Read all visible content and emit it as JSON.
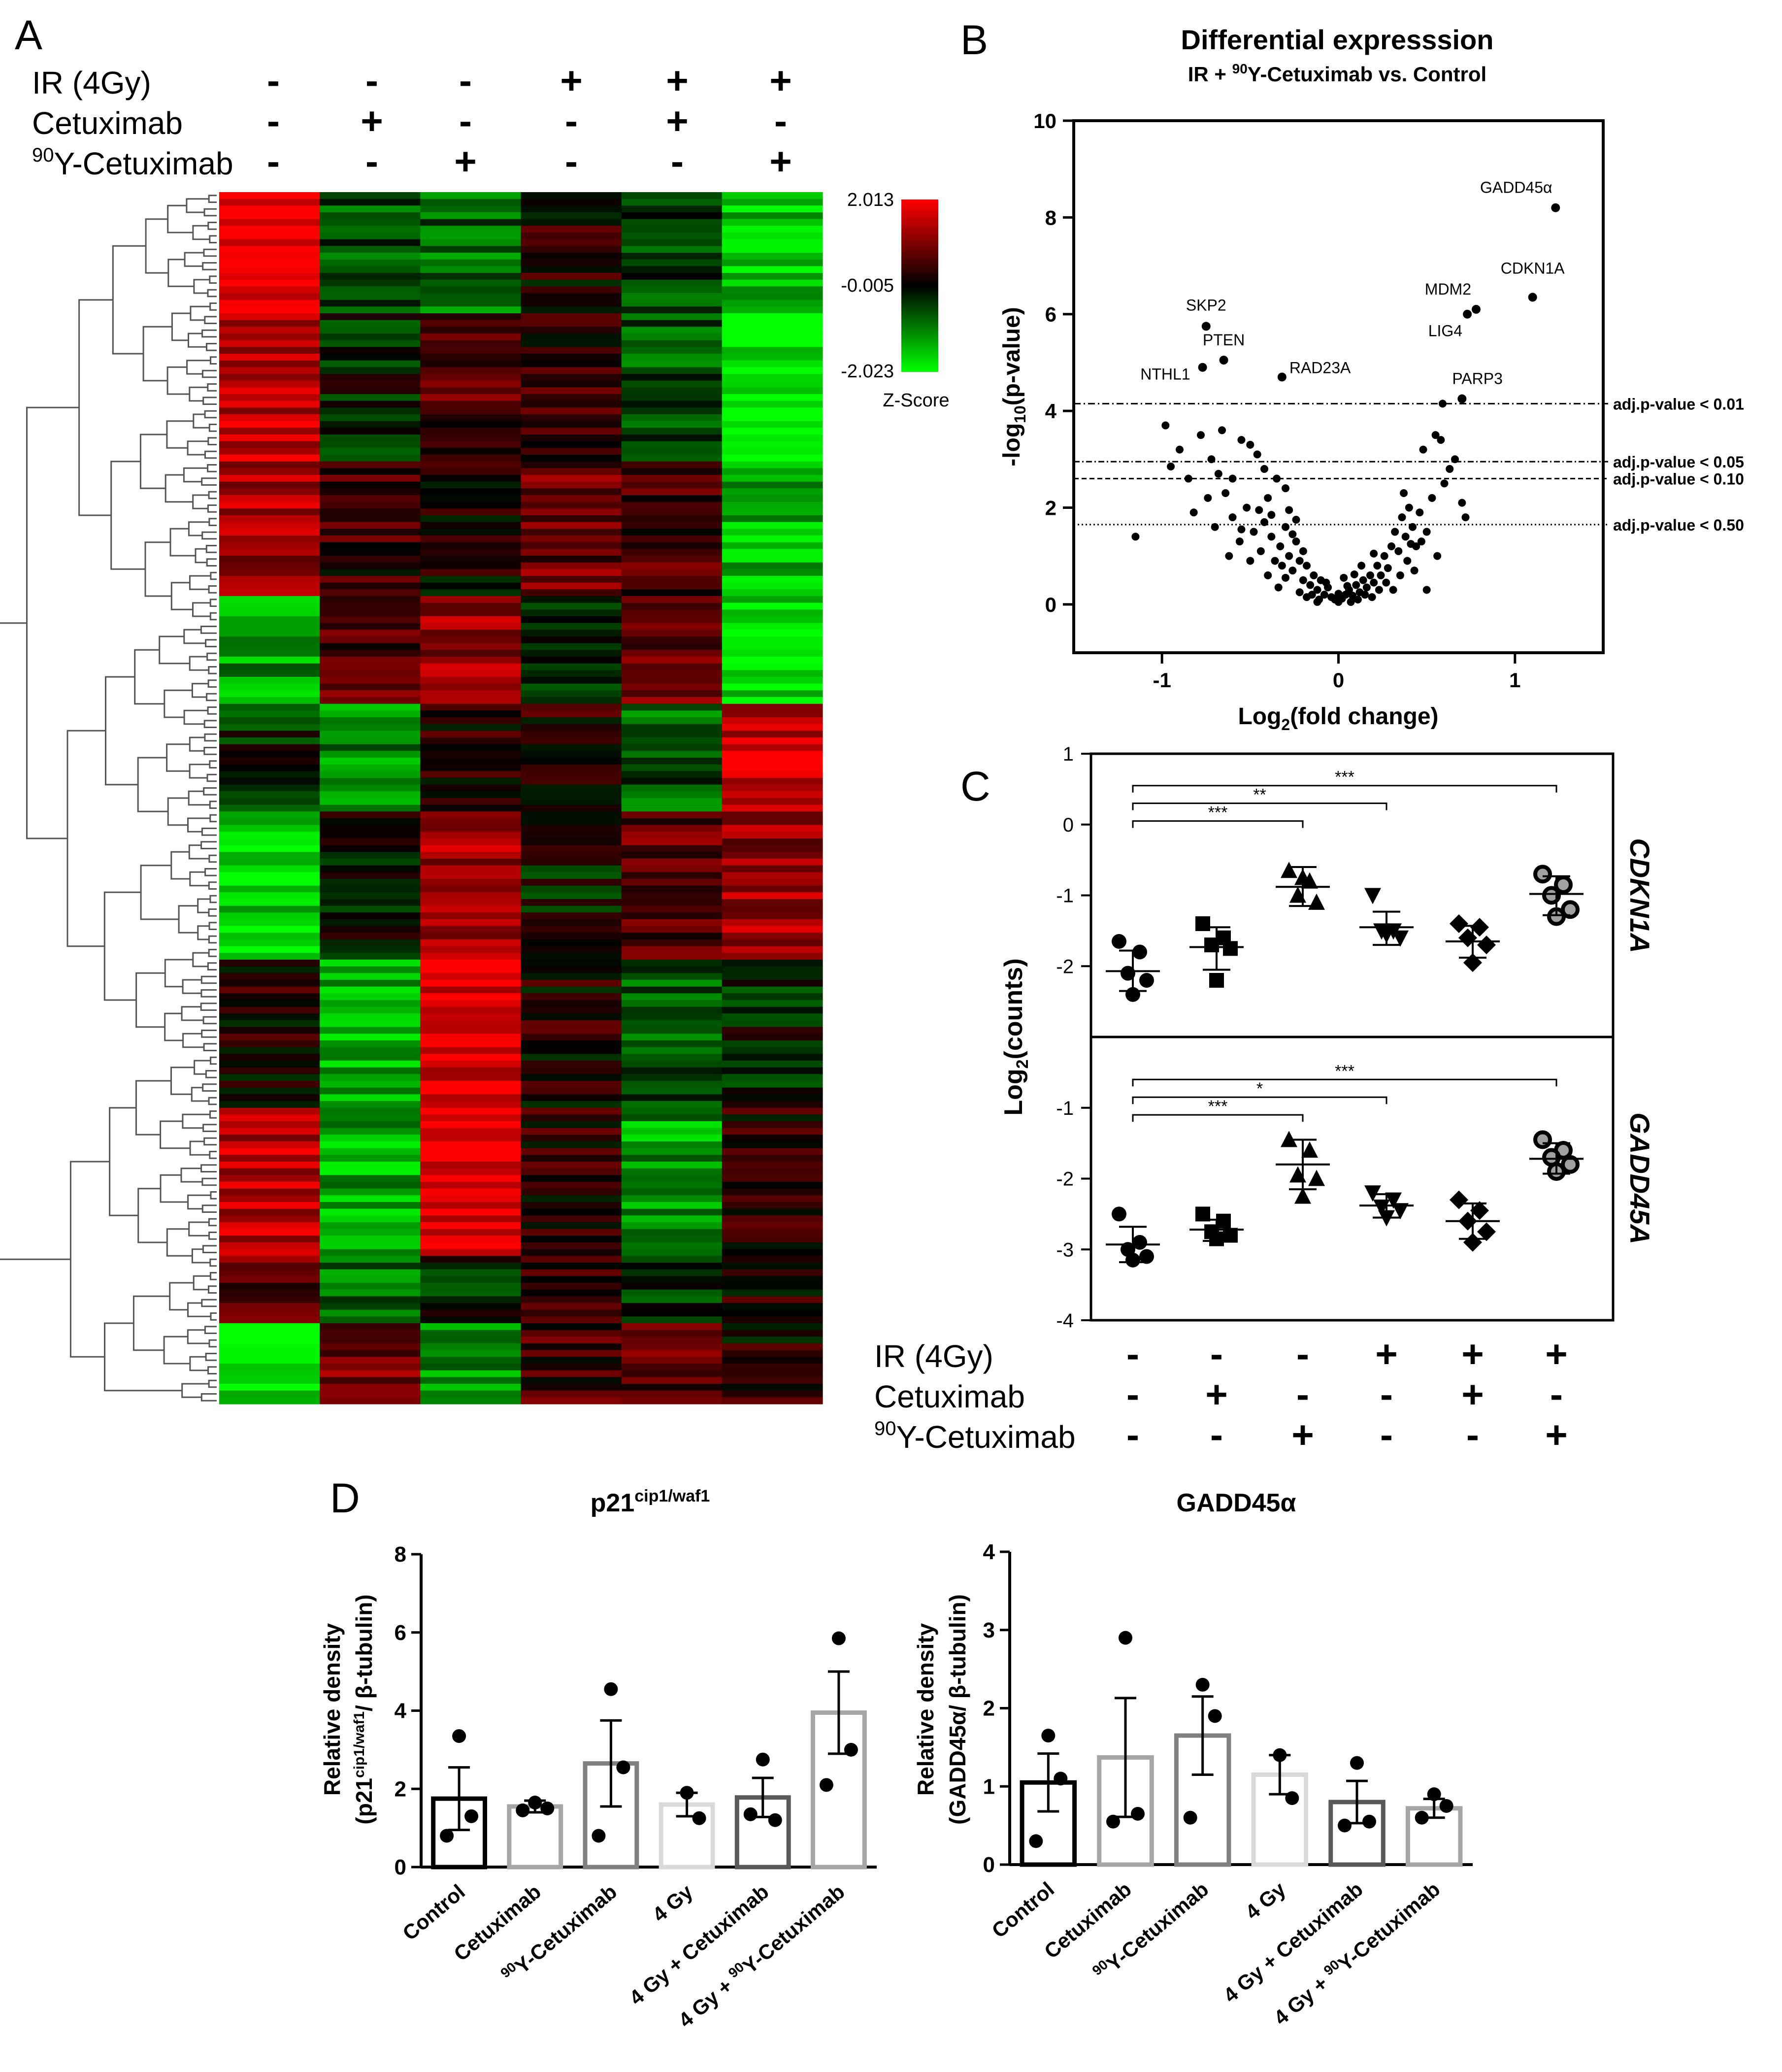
{
  "panel_labels": {
    "A": "A",
    "B": "B",
    "C": "C",
    "D": "D"
  },
  "conditions": {
    "rows": [
      {
        "label": "IR (4Gy)",
        "signs": [
          "-",
          "-",
          "-",
          "+",
          "+",
          "+"
        ]
      },
      {
        "label": "Cetuximab",
        "signs": [
          "-",
          "+",
          "-",
          "-",
          "+",
          "-"
        ]
      },
      {
        "label": "Y-Cetuximab",
        "sup": "90",
        "signs": [
          "-",
          "-",
          "+",
          "-",
          "-",
          "+"
        ]
      }
    ]
  },
  "colors": {
    "high": "#ff0000",
    "mid": "#000000",
    "low": "#00ff00",
    "black": "#000000"
  },
  "chart_data": [
    {
      "id": "heatmap",
      "type": "heatmap",
      "columns": 6,
      "rows_approx": 180,
      "colorbar": {
        "max_label": "2.013",
        "mid_label": "-0.005",
        "min_label": "-2.023",
        "title": "Z-Score",
        "range": [
          -2.023,
          2.013
        ]
      },
      "column_blocks": [
        [
          2.0,
          -0.6,
          -0.8,
          0.2,
          -0.5,
          -1.6
        ],
        [
          1.5,
          -0.2,
          0.6,
          0.3,
          -0.6,
          -1.9
        ],
        [
          1.3,
          0.4,
          0.2,
          0.8,
          0.5,
          -1.4
        ],
        [
          -1.2,
          0.6,
          1.2,
          -0.2,
          0.9,
          -1.8
        ],
        [
          -0.3,
          -1.0,
          0.3,
          0.2,
          -0.7,
          1.6
        ],
        [
          -1.7,
          -0.1,
          1.2,
          -0.1,
          0.7,
          1.2
        ],
        [
          0.2,
          -1.4,
          1.7,
          0.2,
          -0.6,
          -0.2
        ],
        [
          1.4,
          -1.3,
          1.9,
          0.3,
          -1.2,
          0.3
        ],
        [
          0.8,
          -0.8,
          -0.3,
          0.4,
          -0.5,
          0.2
        ],
        [
          -1.9,
          0.9,
          -1.1,
          0.5,
          0.6,
          0.2
        ]
      ],
      "block_row_counts": [
        18,
        22,
        20,
        16,
        16,
        22,
        22,
        22,
        10,
        12
      ]
    },
    {
      "id": "volcano",
      "type": "scatter",
      "title": "Differential expresssion",
      "subtitle_pre": "IR + ",
      "subtitle_sup": "90",
      "subtitle_post": "Y-Cetuximab vs. Control",
      "ylabel_pre": "-log",
      "ylabel_sub": "10",
      "ylabel_post": "(p-value)",
      "xlabel_pre": "Log",
      "xlabel_sub": "2",
      "xlabel_post": "(fold change)",
      "xlim": [
        -1.5,
        1.5
      ],
      "ylim": [
        -1,
        10
      ],
      "xticks": [
        "-1",
        "0",
        "1"
      ],
      "yticks": [
        "0",
        "2",
        "4",
        "6",
        "8",
        "10"
      ],
      "thresholds": [
        {
          "label": "adj.p-value < 0.01",
          "y": 4.15
        },
        {
          "label": "adj.p-value < 0.05",
          "y": 2.95
        },
        {
          "label": "adj.p-value < 0.10",
          "y": 2.6
        },
        {
          "label": "adj.p-value < 0.50",
          "y": 1.65
        }
      ],
      "labeled_points": [
        {
          "label": "GADD45α",
          "x": 1.23,
          "y": 8.2
        },
        {
          "label": "CDKN1A",
          "x": 1.1,
          "y": 6.35
        },
        {
          "label": "MDM2",
          "x": 0.78,
          "y": 6.1
        },
        {
          "label": "LIG4",
          "x": 0.73,
          "y": 6.0
        },
        {
          "label": "PARP3",
          "x": 0.7,
          "y": 4.25
        },
        {
          "label": "SKP2",
          "x": -0.75,
          "y": 5.75
        },
        {
          "label": "PTEN",
          "x": -0.65,
          "y": 5.05
        },
        {
          "label": "NTHL1",
          "x": -0.77,
          "y": 4.9
        },
        {
          "label": "RAD23A",
          "x": -0.32,
          "y": 4.7
        }
      ],
      "points": [
        [
          0.59,
          4.15
        ],
        [
          -1.15,
          1.4
        ],
        [
          -0.95,
          2.85
        ],
        [
          -0.98,
          3.7
        ],
        [
          -0.9,
          3.2
        ],
        [
          -0.78,
          3.5
        ],
        [
          -0.72,
          3.0
        ],
        [
          -0.66,
          3.6
        ],
        [
          -0.6,
          2.6
        ],
        [
          -0.55,
          3.4
        ],
        [
          -0.5,
          3.3
        ],
        [
          -0.46,
          3.1
        ],
        [
          -0.42,
          2.8
        ],
        [
          -0.4,
          2.2
        ],
        [
          -0.35,
          2.6
        ],
        [
          -0.3,
          2.4
        ],
        [
          -0.85,
          2.6
        ],
        [
          -0.82,
          1.9
        ],
        [
          -0.74,
          2.2
        ],
        [
          -0.7,
          1.6
        ],
        [
          -0.64,
          2.3
        ],
        [
          -0.6,
          1.8
        ],
        [
          -0.56,
          1.3
        ],
        [
          -0.52,
          2.0
        ],
        [
          -0.48,
          1.5
        ],
        [
          -0.44,
          1.1
        ],
        [
          -0.42,
          1.7
        ],
        [
          -0.38,
          1.4
        ],
        [
          -0.36,
          0.9
        ],
        [
          -0.33,
          1.2
        ],
        [
          -0.3,
          1.6
        ],
        [
          -0.28,
          1.0
        ],
        [
          -0.26,
          0.7
        ],
        [
          -0.24,
          1.3
        ],
        [
          -0.22,
          0.9
        ],
        [
          -0.2,
          0.5
        ],
        [
          -0.18,
          0.8
        ],
        [
          -0.16,
          0.4
        ],
        [
          -0.14,
          0.6
        ],
        [
          -0.12,
          0.3
        ],
        [
          -0.1,
          0.5
        ],
        [
          -0.08,
          0.2
        ],
        [
          -0.06,
          0.35
        ],
        [
          -0.04,
          0.15
        ],
        [
          -0.02,
          0.1
        ],
        [
          0.0,
          0.05
        ],
        [
          0.02,
          0.12
        ],
        [
          0.04,
          0.2
        ],
        [
          0.06,
          0.3
        ],
        [
          0.08,
          0.18
        ],
        [
          0.1,
          0.4
        ],
        [
          0.12,
          0.25
        ],
        [
          0.14,
          0.5
        ],
        [
          0.16,
          0.35
        ],
        [
          0.18,
          0.6
        ],
        [
          0.2,
          0.45
        ],
        [
          0.22,
          0.8
        ],
        [
          0.24,
          0.6
        ],
        [
          0.26,
          1.0
        ],
        [
          0.28,
          0.75
        ],
        [
          0.3,
          1.2
        ],
        [
          0.32,
          1.5
        ],
        [
          0.34,
          1.1
        ],
        [
          0.36,
          1.8
        ],
        [
          0.38,
          1.4
        ],
        [
          0.4,
          2.0
        ],
        [
          0.42,
          1.6
        ],
        [
          0.44,
          1.2
        ],
        [
          0.46,
          1.9
        ],
        [
          0.5,
          1.5
        ],
        [
          0.53,
          2.2
        ],
        [
          0.56,
          1.0
        ],
        [
          0.6,
          2.5
        ],
        [
          0.63,
          2.8
        ],
        [
          0.55,
          3.5
        ],
        [
          0.66,
          3.0
        ],
        [
          0.7,
          2.1
        ],
        [
          0.72,
          1.8
        ],
        [
          0.48,
          3.2
        ],
        [
          0.58,
          3.4
        ],
        [
          0.5,
          0.3
        ],
        [
          -0.5,
          0.9
        ],
        [
          -0.62,
          1.0
        ],
        [
          -0.68,
          2.7
        ],
        [
          -0.4,
          0.6
        ],
        [
          -0.34,
          0.35
        ],
        [
          -0.3,
          0.55
        ],
        [
          -0.26,
          1.45
        ],
        [
          -0.2,
          1.1
        ],
        [
          -0.15,
          0.2
        ],
        [
          -0.11,
          0.1
        ],
        [
          -0.07,
          0.45
        ],
        [
          0.03,
          0.55
        ],
        [
          0.07,
          0.05
        ],
        [
          0.11,
          0.1
        ],
        [
          0.15,
          0.2
        ],
        [
          0.19,
          0.15
        ],
        [
          0.23,
          0.3
        ],
        [
          0.27,
          0.45
        ],
        [
          0.31,
          0.3
        ],
        [
          0.35,
          0.6
        ],
        [
          0.39,
          0.9
        ],
        [
          0.43,
          0.7
        ],
        [
          0.47,
          1.3
        ],
        [
          0.37,
          2.3
        ],
        [
          0.41,
          1.25
        ],
        [
          -0.45,
          1.95
        ],
        [
          -0.55,
          1.55
        ],
        [
          -0.38,
          1.85
        ],
        [
          -0.24,
          1.75
        ],
        [
          -0.28,
          1.95
        ],
        [
          -0.32,
          0.8
        ],
        [
          -0.22,
          0.25
        ],
        [
          -0.18,
          0.15
        ],
        [
          -0.12,
          0.05
        ],
        [
          0.0,
          0.22
        ],
        [
          0.05,
          0.38
        ],
        [
          0.09,
          0.62
        ],
        [
          0.13,
          0.8
        ],
        [
          0.2,
          1.05
        ]
      ]
    },
    {
      "id": "cdkn1a",
      "type": "scatter",
      "gene_label": "CDKN1A",
      "ylim": [
        -3,
        1
      ],
      "yticks": [
        "-2",
        "-1",
        "0",
        "1"
      ],
      "groups": [
        {
          "mean": -2.07,
          "sd_low": -2.35,
          "sd_high": -1.78,
          "points": [
            -1.65,
            -1.8,
            -2.1,
            -2.2,
            -2.4
          ],
          "marker": "circle"
        },
        {
          "mean": -1.73,
          "sd_low": -2.05,
          "sd_high": -1.45,
          "points": [
            -1.4,
            -1.6,
            -1.7,
            -1.75,
            -2.2
          ],
          "marker": "square"
        },
        {
          "mean": -0.88,
          "sd_low": -1.15,
          "sd_high": -0.6,
          "points": [
            -0.65,
            -0.8,
            -1.0,
            -1.1,
            -0.75
          ],
          "marker": "triangle-up"
        },
        {
          "mean": -1.45,
          "sd_low": -1.7,
          "sd_high": -1.23,
          "points": [
            -1.0,
            -1.5,
            -1.5,
            -1.6,
            -1.55
          ],
          "marker": "triangle-down"
        },
        {
          "mean": -1.65,
          "sd_low": -1.88,
          "sd_high": -1.43,
          "points": [
            -1.4,
            -1.45,
            -1.6,
            -1.7,
            -1.95
          ],
          "marker": "diamond"
        },
        {
          "mean": -0.98,
          "sd_low": -1.28,
          "sd_high": -0.73,
          "points": [
            -0.7,
            -0.85,
            -1.0,
            -1.2,
            -1.3
          ],
          "marker": "circle-gray"
        }
      ],
      "brackets": [
        {
          "from": 0,
          "to": 5,
          "label": "***",
          "y": 0.55
        },
        {
          "from": 0,
          "to": 3,
          "label": "**",
          "y": 0.3
        },
        {
          "from": 0,
          "to": 2,
          "label": "***",
          "y": 0.05
        }
      ]
    },
    {
      "id": "gadd45a",
      "type": "scatter",
      "gene_label": "GADD45A",
      "ylim": [
        -4,
        0
      ],
      "yticks": [
        "-4",
        "-3",
        "-2",
        "-1"
      ],
      "groups": [
        {
          "mean": -2.93,
          "sd_low": -3.18,
          "sd_high": -2.68,
          "points": [
            -2.5,
            -2.9,
            -3.0,
            -3.1,
            -3.15
          ],
          "marker": "circle"
        },
        {
          "mean": -2.72,
          "sd_low": -2.88,
          "sd_high": -2.58,
          "points": [
            -2.5,
            -2.6,
            -2.75,
            -2.8,
            -2.85
          ],
          "marker": "square"
        },
        {
          "mean": -1.8,
          "sd_low": -2.15,
          "sd_high": -1.45,
          "points": [
            -1.45,
            -1.6,
            -1.95,
            -2.0,
            -2.25
          ],
          "marker": "triangle-up"
        },
        {
          "mean": -2.38,
          "sd_low": -2.55,
          "sd_high": -2.22,
          "points": [
            -2.2,
            -2.3,
            -2.4,
            -2.45,
            -2.55
          ],
          "marker": "triangle-down"
        },
        {
          "mean": -2.6,
          "sd_low": -2.85,
          "sd_high": -2.35,
          "points": [
            -2.3,
            -2.45,
            -2.6,
            -2.75,
            -2.9
          ],
          "marker": "diamond"
        },
        {
          "mean": -1.72,
          "sd_low": -1.93,
          "sd_high": -1.5,
          "points": [
            -1.45,
            -1.6,
            -1.7,
            -1.8,
            -1.9
          ],
          "marker": "circle-gray"
        }
      ],
      "brackets": [
        {
          "from": 0,
          "to": 5,
          "label": "***",
          "y": -0.6
        },
        {
          "from": 0,
          "to": 3,
          "label": "*",
          "y": -0.85
        },
        {
          "from": 0,
          "to": 2,
          "label": "***",
          "y": -1.1
        }
      ]
    },
    {
      "id": "p21_bar",
      "type": "bar",
      "title_pre": "p21",
      "title_sup": "cip1/waf1",
      "ylabel_line1": "Relative density",
      "ylabel_pre": "(p21",
      "ylabel_sup": "cip1/waf1",
      "ylabel_post": "/ β-tubulin)",
      "ylim": [
        0,
        8
      ],
      "yticks": [
        "0",
        "2",
        "4",
        "6",
        "8"
      ],
      "bars": [
        {
          "category": "Control",
          "value": 1.75,
          "sem": 0.8,
          "points": [
            3.35,
            1.3,
            0.8
          ],
          "color": "#000000"
        },
        {
          "category": "Cetuximab",
          "value": 1.55,
          "sem": 0.15,
          "points": [
            1.65,
            1.5,
            1.45
          ],
          "color": "#a6a6a6"
        },
        {
          "category": "Y-Cetuximab",
          "sup": "90",
          "value": 2.65,
          "sem": 1.1,
          "points": [
            4.55,
            2.55,
            0.8
          ],
          "color": "#808080"
        },
        {
          "category": "4 Gy",
          "value": 1.6,
          "sem": 0.3,
          "points": [
            1.9,
            1.25
          ],
          "color": "#d9d9d9"
        },
        {
          "category": "4 Gy + Cetuximab",
          "value": 1.78,
          "sem": 0.5,
          "points": [
            2.75,
            1.2,
            1.35
          ],
          "color": "#595959"
        },
        {
          "category": "4 Gy + Y-Cetuximab",
          "sup": "90",
          "value": 3.95,
          "sem": 1.05,
          "points": [
            5.85,
            3.0,
            2.1
          ],
          "color": "#a6a6a6"
        }
      ]
    },
    {
      "id": "gadd45_bar",
      "type": "bar",
      "title": "GADD45α",
      "ylabel_line1": "Relative density",
      "ylabel_line2": "(GADD45α/ β-tubulin)",
      "ylim": [
        0,
        4
      ],
      "yticks": [
        "0",
        "1",
        "2",
        "3",
        "4"
      ],
      "bars": [
        {
          "category": "Control",
          "value": 1.05,
          "sem": 0.37,
          "points": [
            1.65,
            1.1,
            0.3
          ],
          "color": "#000000"
        },
        {
          "category": "Cetuximab",
          "value": 1.37,
          "sem": 0.76,
          "points": [
            2.9,
            0.65,
            0.55
          ],
          "color": "#a6a6a6"
        },
        {
          "category": "Y-Cetuximab",
          "sup": "90",
          "value": 1.65,
          "sem": 0.5,
          "points": [
            2.3,
            1.9,
            0.6
          ],
          "color": "#808080"
        },
        {
          "category": "4 Gy",
          "value": 1.15,
          "sem": 0.25,
          "points": [
            1.4,
            0.85
          ],
          "color": "#d9d9d9"
        },
        {
          "category": "4 Gy + Cetuximab",
          "value": 0.8,
          "sem": 0.27,
          "points": [
            1.3,
            0.55,
            0.5
          ],
          "color": "#595959"
        },
        {
          "category": "4 Gy + Y-Cetuximab",
          "sup": "90",
          "value": 0.72,
          "sem": 0.12,
          "points": [
            0.9,
            0.75,
            0.6
          ],
          "color": "#a6a6a6"
        }
      ]
    }
  ]
}
